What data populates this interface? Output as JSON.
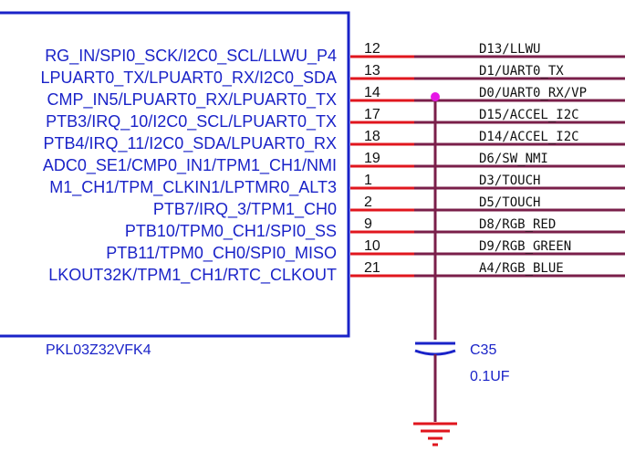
{
  "component": {
    "part_number": "PKL03Z32VFK4",
    "pins": [
      {
        "name": "RG_IN/SPI0_SCK/I2C0_SCL/LLWU_P4",
        "number": "12",
        "net": "D13/LLWU"
      },
      {
        "name": "LPUART0_TX/LPUART0_RX/I2C0_SDA",
        "number": "13",
        "net": "D1/UART0_TX"
      },
      {
        "name": "CMP_IN5/LPUART0_RX/LPUART0_TX",
        "number": "14",
        "net": "D0/UART0_RX/VP"
      },
      {
        "name": "PTB3/IRQ_10/I2C0_SCL/LPUART0_TX",
        "number": "17",
        "net": "D15/ACCEL_I2C"
      },
      {
        "name": "PTB4/IRQ_11/I2C0_SDA/LPUART0_RX",
        "number": "18",
        "net": "D14/ACCEL_I2C"
      },
      {
        "name": "ADC0_SE1/CMP0_IN1/TPM1_CH1/NMI",
        "number": "19",
        "net": "D6/SW_NMI"
      },
      {
        "name": "M1_CH1/TPM_CLKIN1/LPTMR0_ALT3",
        "number": "1",
        "net": "D3/TOUCH"
      },
      {
        "name": "PTB7/IRQ_3/TPM1_CH0",
        "number": "2",
        "net": "D5/TOUCH"
      },
      {
        "name": "PTB10/TPM0_CH1/SPI0_SS",
        "number": "9",
        "net": "D8/RGB_RED"
      },
      {
        "name": "PTB11/TPM0_CH0/SPI0_MISO",
        "number": "10",
        "net": "D9/RGB_GREEN"
      },
      {
        "name": "LKOUT32K/TPM1_CH1/RTC_CLKOUT",
        "number": "21",
        "net": "A4/RGB_BLUE"
      }
    ]
  },
  "capacitor": {
    "designator": "C35",
    "value": "0.1UF"
  },
  "colors": {
    "component_outline": "#1a23c8",
    "pin_line": "#e0161e",
    "net_wire": "#7a1f4a",
    "junction": "#e617e6",
    "ground": "#e0161e"
  }
}
